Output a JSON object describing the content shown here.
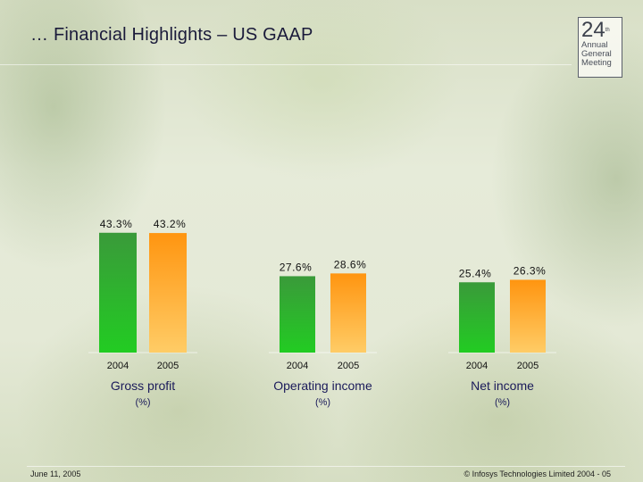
{
  "header": {
    "title": "… Financial Highlights – US GAAP"
  },
  "logo": {
    "number": "24",
    "superscript": "th",
    "line1": "Annual",
    "line2": "General",
    "line3": "Meeting"
  },
  "footer": {
    "date": "June 11, 2005",
    "copyright": "© Infosys Technologies Limited 2004 - 05"
  },
  "colors": {
    "green": "#2eb52e",
    "orange": "#ff9e1e"
  },
  "chart_data": [
    {
      "type": "bar",
      "categories": [
        "2004",
        "2005"
      ],
      "values": [
        43.3,
        43.2
      ],
      "labels": [
        "43.3%",
        "43.2%"
      ],
      "title": "Gross profit",
      "subtitle": "(%)"
    },
    {
      "type": "bar",
      "categories": [
        "2004",
        "2005"
      ],
      "values": [
        27.6,
        28.6
      ],
      "labels": [
        "27.6%",
        "28.6%"
      ],
      "title": "Operating income",
      "subtitle": "(%)"
    },
    {
      "type": "bar",
      "categories": [
        "2004",
        "2005"
      ],
      "values": [
        25.4,
        26.3
      ],
      "labels": [
        "25.4%",
        "26.3%"
      ],
      "title": "Net income",
      "subtitle": "(%)"
    }
  ]
}
